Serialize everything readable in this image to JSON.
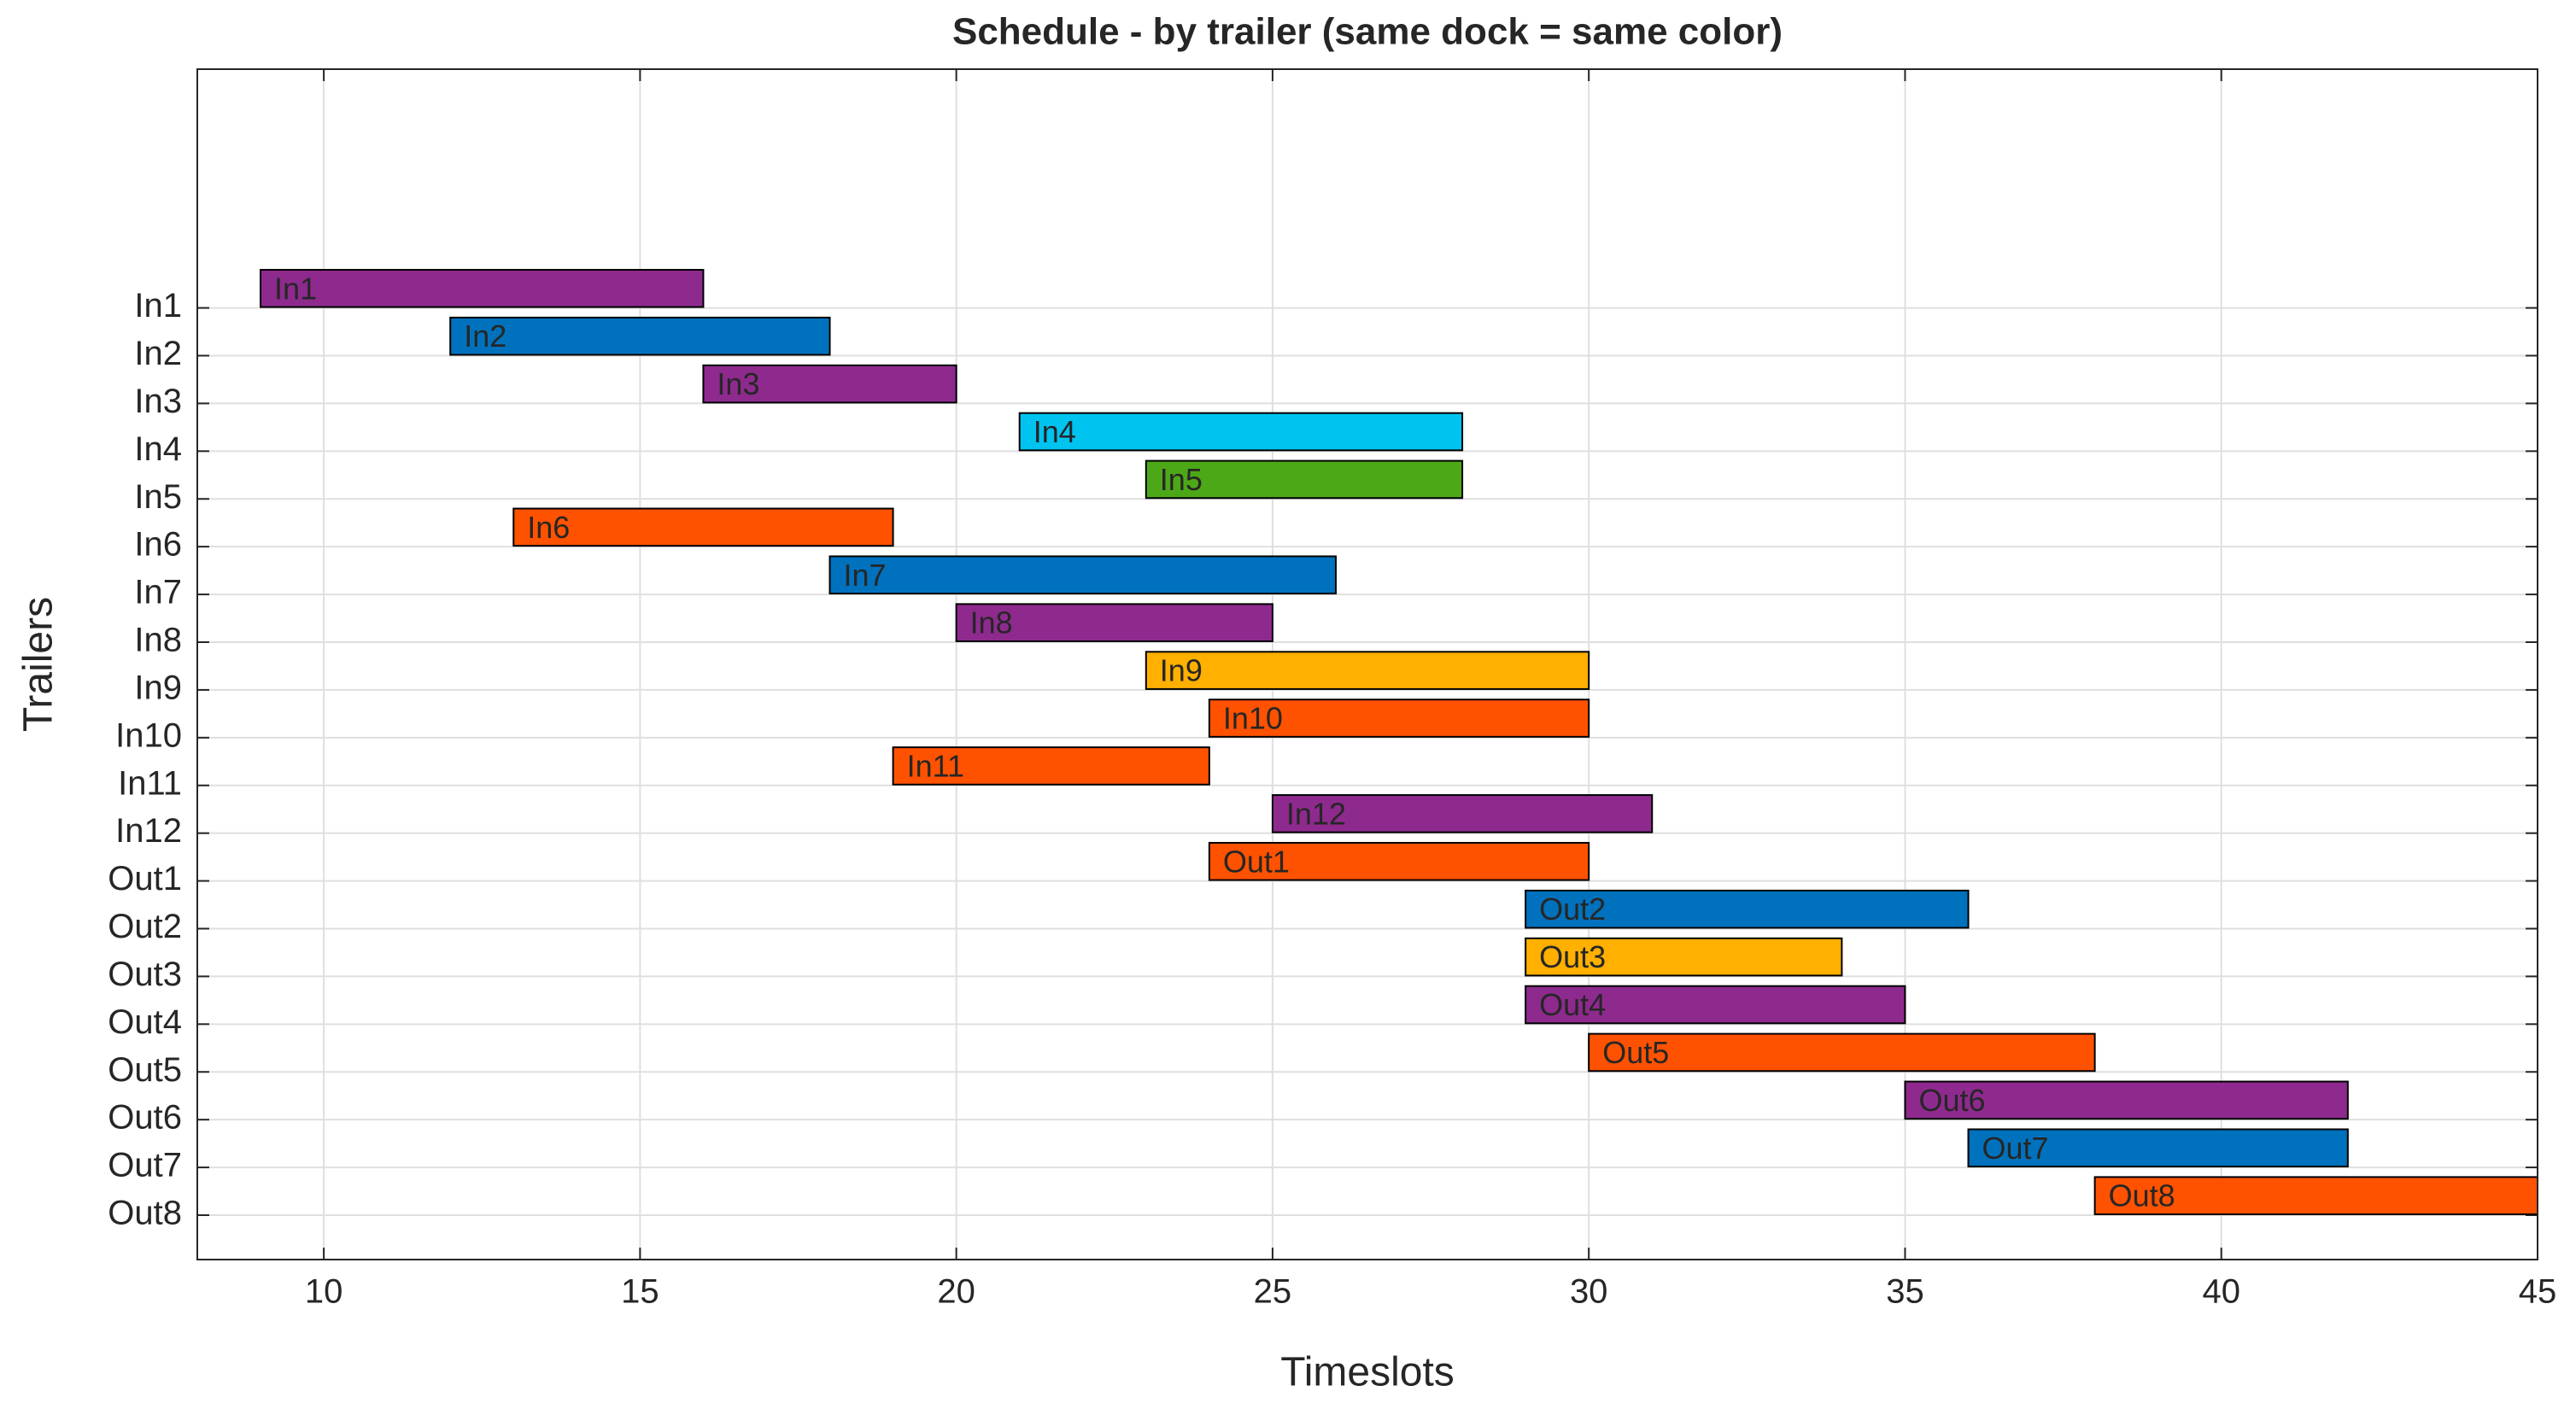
{
  "chart_data": {
    "type": "gantt",
    "title": "Schedule - by trailer (same dock = same color)",
    "x_label": "Timeslots",
    "y_label": "Trailers",
    "categories": [
      "In1",
      "In2",
      "In3",
      "In4",
      "In5",
      "In6",
      "In7",
      "In8",
      "In9",
      "In10",
      "In11",
      "In12",
      "Out1",
      "Out2",
      "Out3",
      "Out4",
      "Out5",
      "Out6",
      "Out7",
      "Out8"
    ],
    "start": [
      9,
      12,
      16,
      21,
      23,
      13,
      18,
      20,
      23,
      24,
      19,
      25,
      24,
      29,
      29,
      29,
      30,
      35,
      36,
      38
    ],
    "end": [
      16,
      18,
      20,
      28,
      28,
      19,
      26,
      25,
      30,
      30,
      24,
      31,
      30,
      36,
      34,
      35,
      38,
      42,
      42,
      45
    ],
    "colors": [
      "#8e2a8e",
      "#0072bd",
      "#8e2a8e",
      "#00c3f0",
      "#4da818",
      "#ff5200",
      "#0072bd",
      "#8e2a8e",
      "#ffb000",
      "#ff5200",
      "#ff5200",
      "#8e2a8e",
      "#ff5200",
      "#0072bd",
      "#ffb000",
      "#8e2a8e",
      "#ff5200",
      "#8e2a8e",
      "#0072bd",
      "#ff5200"
    ],
    "xlim": [
      8,
      45
    ],
    "xticks": [
      10,
      15,
      20,
      25,
      30,
      35,
      40,
      45
    ],
    "grid": true
  }
}
